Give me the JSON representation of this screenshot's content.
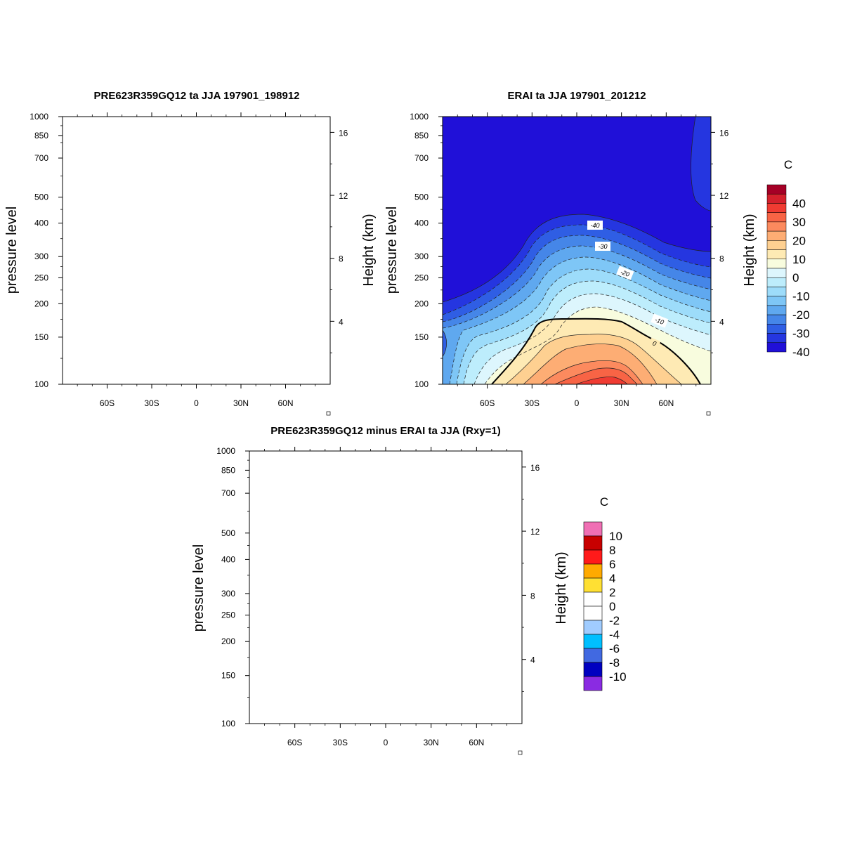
{
  "chart_data": [
    {
      "type": "heatmap",
      "title": "PRE623R359GQ12 ta JJA 197901_198912",
      "ylabel": "pressure level",
      "ylabel_right": "Height (km)",
      "xticks": [
        "60S",
        "30S",
        "0",
        "30N",
        "60N"
      ],
      "yticks": [
        "100",
        "150",
        "200",
        "250",
        "300",
        "400",
        "500",
        "700",
        "850",
        "1000"
      ],
      "yticks_right": [
        "16",
        "12",
        "8",
        "4"
      ],
      "xlim": [
        -90,
        90
      ],
      "ylim": [
        1000,
        100
      ],
      "yscale": "log",
      "values": []
    },
    {
      "type": "heatmap",
      "title": "ERAI ta JJA 197901_201212",
      "ylabel": "pressure level",
      "ylabel_right": "Height (km)",
      "xticks": [
        "60S",
        "30S",
        "0",
        "30N",
        "60N"
      ],
      "yticks": [
        "100",
        "150",
        "200",
        "250",
        "300",
        "400",
        "500",
        "700",
        "850",
        "1000"
      ],
      "yticks_right": [
        "16",
        "12",
        "8",
        "4"
      ],
      "xlim": [
        -90,
        90
      ],
      "ylim": [
        1000,
        100
      ],
      "yscale": "log",
      "colorbar_units": "C",
      "colorbar_labels": [
        "40",
        "30",
        "20",
        "10",
        "0",
        "-10",
        "-20",
        "-30",
        "-40"
      ],
      "contour_labels": [
        "-40",
        "-30",
        "-20",
        "-10",
        "0"
      ],
      "grid": false
    },
    {
      "type": "heatmap",
      "title": "PRE623R359GQ12 minus ERAI ta JJA (Rxy=1)",
      "ylabel": "pressure level",
      "ylabel_right": "Height (km)",
      "xticks": [
        "60S",
        "30S",
        "0",
        "30N",
        "60N"
      ],
      "yticks": [
        "100",
        "150",
        "200",
        "250",
        "300",
        "400",
        "500",
        "700",
        "850",
        "1000"
      ],
      "yticks_right": [
        "16",
        "12",
        "8",
        "4"
      ],
      "xlim": [
        -90,
        90
      ],
      "ylim": [
        1000,
        100
      ],
      "yscale": "log",
      "colorbar_units": "C",
      "colorbar_labels": [
        "10",
        "8",
        "6",
        "4",
        "2",
        "0",
        "-2",
        "-4",
        "-6",
        "-8",
        "-10"
      ],
      "values": []
    }
  ],
  "colors": {
    "temp_levels": [
      "#a50026",
      "#d4202c",
      "#f03b32",
      "#f86445",
      "#fc8a5e",
      "#fdad74",
      "#fed091",
      "#feeab4",
      "#f8fcde",
      "#ddf6fd",
      "#bdedfc",
      "#9ddcfa",
      "#7ec6f6",
      "#5fa8ef",
      "#4586e8",
      "#2f5ee4",
      "#2536e0",
      "#2010d8"
    ],
    "diff_levels": [
      "#f06fb4",
      "#c80000",
      "#ff1a1a",
      "#ffaa00",
      "#ffe033",
      "#ffffff",
      "#ffffff",
      "#a0ccff",
      "#00bfff",
      "#4169e1",
      "#0000c0",
      "#8a2be2"
    ]
  }
}
